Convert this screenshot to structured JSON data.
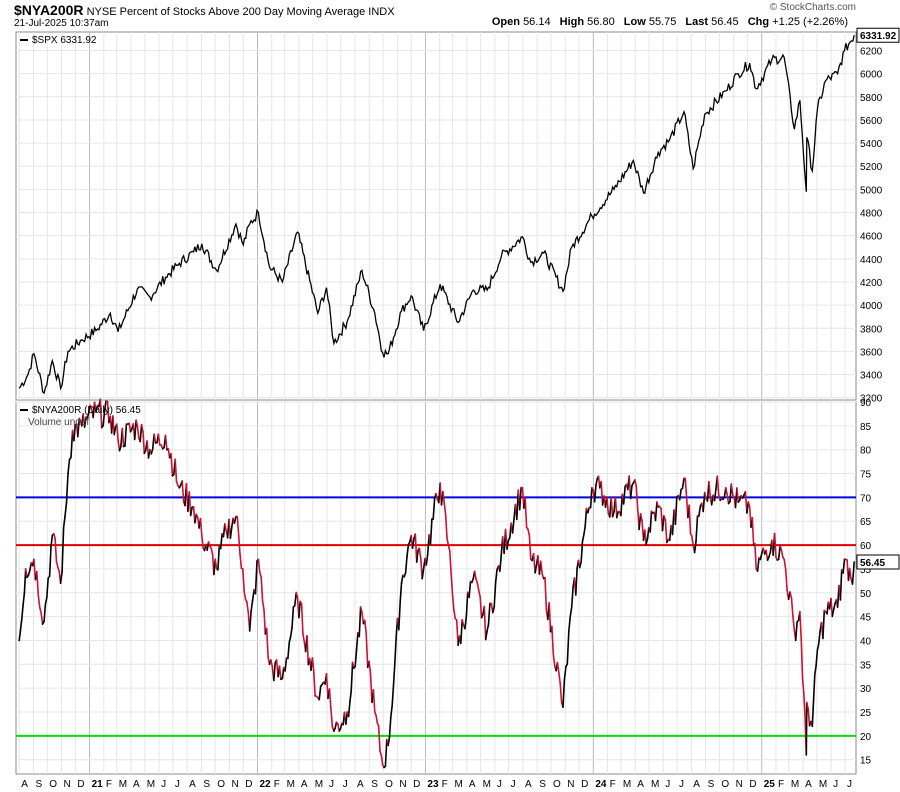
{
  "header": {
    "symbol": "$NYA200R",
    "title": "NYSE Percent of Stocks Above 200 Day Moving Average",
    "exchange": "INDX",
    "timestamp": "21-Jul-2025 10:37am",
    "watermark": "© StockCharts.com",
    "quote": {
      "open_label": "Open",
      "open": "56.14",
      "high_label": "High",
      "high": "56.80",
      "low_label": "Low",
      "low": "55.75",
      "last_label": "Last",
      "last": "56.45",
      "chg_label": "Chg",
      "chg": "+1.25 (+2.26%)"
    }
  },
  "colors": {
    "spx_line": "#000000",
    "nya_rising": "#000000",
    "nya_falling": "#cc1133",
    "line_70": "#0000dd",
    "line_60": "#dd0000",
    "line_20": "#00dd00",
    "grid": "#e6e6e6"
  },
  "chart_data": [
    {
      "type": "line",
      "panel": "upper",
      "legend": "$SPX 6331.92",
      "series": [
        {
          "name": "$SPX",
          "last_label": "6331.92",
          "points": [
            [
              "2020-08-01",
              3280
            ],
            [
              "2020-08-20",
              3400
            ],
            [
              "2020-09-02",
              3580
            ],
            [
              "2020-09-24",
              3240
            ],
            [
              "2020-10-12",
              3520
            ],
            [
              "2020-10-30",
              3280
            ],
            [
              "2020-11-15",
              3600
            ],
            [
              "2020-12-15",
              3700
            ],
            [
              "2021-01-15",
              3780
            ],
            [
              "2021-02-15",
              3930
            ],
            [
              "2021-03-04",
              3770
            ],
            [
              "2021-04-15",
              4140
            ],
            [
              "2021-05-12",
              4070
            ],
            [
              "2021-06-15",
              4240
            ],
            [
              "2021-07-15",
              4360
            ],
            [
              "2021-08-15",
              4460
            ],
            [
              "2021-09-02",
              4530
            ],
            [
              "2021-10-04",
              4300
            ],
            [
              "2021-11-15",
              4700
            ],
            [
              "2021-12-01",
              4520
            ],
            [
              "2021-12-15",
              4700
            ],
            [
              "2022-01-03",
              4800
            ],
            [
              "2022-01-27",
              4330
            ],
            [
              "2022-02-24",
              4200
            ],
            [
              "2022-03-29",
              4630
            ],
            [
              "2022-05-12",
              3930
            ],
            [
              "2022-05-31",
              4150
            ],
            [
              "2022-06-16",
              3670
            ],
            [
              "2022-07-15",
              3860
            ],
            [
              "2022-08-16",
              4300
            ],
            [
              "2022-09-13",
              3930
            ],
            [
              "2022-09-30",
              3590
            ],
            [
              "2022-10-12",
              3580
            ],
            [
              "2022-11-10",
              3950
            ],
            [
              "2022-12-01",
              4080
            ],
            [
              "2022-12-28",
              3780
            ],
            [
              "2023-02-02",
              4180
            ],
            [
              "2023-03-13",
              3850
            ],
            [
              "2023-04-15",
              4130
            ],
            [
              "2023-05-15",
              4130
            ],
            [
              "2023-06-15",
              4420
            ],
            [
              "2023-07-31",
              4590
            ],
            [
              "2023-08-18",
              4370
            ],
            [
              "2023-09-15",
              4450
            ],
            [
              "2023-10-27",
              4120
            ],
            [
              "2023-11-15",
              4500
            ],
            [
              "2023-12-29",
              4770
            ],
            [
              "2024-02-15",
              5000
            ],
            [
              "2024-03-28",
              5250
            ],
            [
              "2024-04-19",
              4970
            ],
            [
              "2024-05-21",
              5320
            ],
            [
              "2024-06-15",
              5430
            ],
            [
              "2024-07-16",
              5670
            ],
            [
              "2024-08-05",
              5180
            ],
            [
              "2024-08-30",
              5650
            ],
            [
              "2024-10-15",
              5850
            ],
            [
              "2024-11-11",
              6000
            ],
            [
              "2024-12-06",
              6090
            ],
            [
              "2024-12-20",
              5870
            ],
            [
              "2025-01-23",
              6120
            ],
            [
              "2025-02-19",
              6140
            ],
            [
              "2025-03-13",
              5520
            ],
            [
              "2025-03-25",
              5770
            ],
            [
              "2025-04-08",
              4980
            ],
            [
              "2025-04-09",
              5450
            ],
            [
              "2025-04-21",
              5160
            ],
            [
              "2025-05-02",
              5690
            ],
            [
              "2025-05-20",
              5940
            ],
            [
              "2025-06-15",
              6000
            ],
            [
              "2025-06-30",
              6200
            ],
            [
              "2025-07-21",
              6331.92
            ]
          ]
        }
      ],
      "y_ticks": [
        3200,
        3400,
        3600,
        3800,
        4000,
        4200,
        4400,
        4600,
        4800,
        5000,
        5200,
        5400,
        5600,
        5800,
        6000,
        6200
      ],
      "ylim": [
        3180,
        6360
      ]
    },
    {
      "type": "line",
      "panel": "lower",
      "legend": "$NYA200R (Daily) 56.45",
      "sublegend": "Volume undef",
      "series": [
        {
          "name": "$NYA200R",
          "last_label": "56.45",
          "points": [
            [
              "2020-08-01",
              40
            ],
            [
              "2020-08-15",
              55
            ],
            [
              "2020-09-02",
              57
            ],
            [
              "2020-09-24",
              44
            ],
            [
              "2020-10-12",
              62
            ],
            [
              "2020-10-30",
              52
            ],
            [
              "2020-11-15",
              75
            ],
            [
              "2020-11-25",
              84
            ],
            [
              "2020-12-15",
              85
            ],
            [
              "2021-01-15",
              88
            ],
            [
              "2021-02-15",
              87
            ],
            [
              "2021-03-04",
              82
            ],
            [
              "2021-04-15",
              85
            ],
            [
              "2021-05-12",
              80
            ],
            [
              "2021-06-15",
              83
            ],
            [
              "2021-07-15",
              72
            ],
            [
              "2021-08-15",
              68
            ],
            [
              "2021-09-02",
              62
            ],
            [
              "2021-10-04",
              55
            ],
            [
              "2021-10-25",
              63
            ],
            [
              "2021-11-15",
              66
            ],
            [
              "2021-11-30",
              55
            ],
            [
              "2021-12-15",
              42
            ],
            [
              "2022-01-03",
              57
            ],
            [
              "2022-01-27",
              35
            ],
            [
              "2022-02-24",
              32
            ],
            [
              "2022-03-29",
              49
            ],
            [
              "2022-05-12",
              28
            ],
            [
              "2022-05-31",
              33
            ],
            [
              "2022-06-16",
              21
            ],
            [
              "2022-07-15",
              25
            ],
            [
              "2022-08-16",
              46
            ],
            [
              "2022-09-13",
              25
            ],
            [
              "2022-09-30",
              14
            ],
            [
              "2022-10-12",
              18
            ],
            [
              "2022-11-10",
              52
            ],
            [
              "2022-12-01",
              62
            ],
            [
              "2022-12-28",
              55
            ],
            [
              "2023-02-02",
              73
            ],
            [
              "2023-02-20",
              60
            ],
            [
              "2023-03-13",
              39
            ],
            [
              "2023-04-15",
              53
            ],
            [
              "2023-05-15",
              42
            ],
            [
              "2023-06-15",
              58
            ],
            [
              "2023-07-31",
              72
            ],
            [
              "2023-08-18",
              57
            ],
            [
              "2023-09-15",
              53
            ],
            [
              "2023-10-27",
              26
            ],
            [
              "2023-11-15",
              47
            ],
            [
              "2023-12-29",
              72
            ],
            [
              "2024-01-15",
              72
            ],
            [
              "2024-02-15",
              67
            ],
            [
              "2024-03-28",
              73
            ],
            [
              "2024-04-19",
              61
            ],
            [
              "2024-05-21",
              68
            ],
            [
              "2024-06-15",
              61
            ],
            [
              "2024-07-16",
              74
            ],
            [
              "2024-08-05",
              60
            ],
            [
              "2024-08-30",
              71
            ],
            [
              "2024-10-15",
              72
            ],
            [
              "2024-11-11",
              69
            ],
            [
              "2024-12-06",
              68
            ],
            [
              "2024-12-20",
              55
            ],
            [
              "2025-01-23",
              61
            ],
            [
              "2025-02-19",
              57
            ],
            [
              "2025-03-13",
              42
            ],
            [
              "2025-03-25",
              46
            ],
            [
              "2025-04-08",
              16
            ],
            [
              "2025-04-09",
              27
            ],
            [
              "2025-04-21",
              22
            ],
            [
              "2025-05-02",
              38
            ],
            [
              "2025-05-20",
              46
            ],
            [
              "2025-06-15",
              47
            ],
            [
              "2025-06-30",
              57
            ],
            [
              "2025-07-14",
              53
            ],
            [
              "2025-07-21",
              56.45
            ]
          ]
        }
      ],
      "reference_lines": [
        {
          "value": 70,
          "color": "#0000dd"
        },
        {
          "value": 60,
          "color": "#dd0000"
        },
        {
          "value": 20,
          "color": "#00dd00"
        }
      ],
      "y_ticks": [
        15,
        20,
        25,
        30,
        35,
        40,
        45,
        50,
        55,
        60,
        65,
        70,
        75,
        80,
        85,
        90
      ],
      "ylim": [
        12,
        90
      ]
    }
  ],
  "x_axis": {
    "start": "2020-07-25",
    "end": "2025-07-25",
    "labels": [
      {
        "text": "A",
        "date": "2020-08-01"
      },
      {
        "text": "S",
        "date": "2020-09-01"
      },
      {
        "text": "O",
        "date": "2020-10-01"
      },
      {
        "text": "N",
        "date": "2020-11-01"
      },
      {
        "text": "D",
        "date": "2020-12-01"
      },
      {
        "text": "21",
        "date": "2021-01-01",
        "bold": true
      },
      {
        "text": "F",
        "date": "2021-02-01"
      },
      {
        "text": "M",
        "date": "2021-03-01"
      },
      {
        "text": "A",
        "date": "2021-04-01"
      },
      {
        "text": "M",
        "date": "2021-05-01"
      },
      {
        "text": "J",
        "date": "2021-06-01"
      },
      {
        "text": "J",
        "date": "2021-07-01"
      },
      {
        "text": "A",
        "date": "2021-08-01"
      },
      {
        "text": "S",
        "date": "2021-09-01"
      },
      {
        "text": "O",
        "date": "2021-10-01"
      },
      {
        "text": "N",
        "date": "2021-11-01"
      },
      {
        "text": "D",
        "date": "2021-12-01"
      },
      {
        "text": "22",
        "date": "2022-01-01",
        "bold": true
      },
      {
        "text": "F",
        "date": "2022-02-01"
      },
      {
        "text": "M",
        "date": "2022-03-01"
      },
      {
        "text": "A",
        "date": "2022-04-01"
      },
      {
        "text": "M",
        "date": "2022-05-01"
      },
      {
        "text": "J",
        "date": "2022-06-01"
      },
      {
        "text": "J",
        "date": "2022-07-01"
      },
      {
        "text": "A",
        "date": "2022-08-01"
      },
      {
        "text": "S",
        "date": "2022-09-01"
      },
      {
        "text": "O",
        "date": "2022-10-01"
      },
      {
        "text": "N",
        "date": "2022-11-01"
      },
      {
        "text": "D",
        "date": "2022-12-01"
      },
      {
        "text": "23",
        "date": "2023-01-01",
        "bold": true
      },
      {
        "text": "F",
        "date": "2023-02-01"
      },
      {
        "text": "M",
        "date": "2023-03-01"
      },
      {
        "text": "A",
        "date": "2023-04-01"
      },
      {
        "text": "M",
        "date": "2023-05-01"
      },
      {
        "text": "J",
        "date": "2023-06-01"
      },
      {
        "text": "J",
        "date": "2023-07-01"
      },
      {
        "text": "A",
        "date": "2023-08-01"
      },
      {
        "text": "S",
        "date": "2023-09-01"
      },
      {
        "text": "O",
        "date": "2023-10-01"
      },
      {
        "text": "N",
        "date": "2023-11-01"
      },
      {
        "text": "D",
        "date": "2023-12-01"
      },
      {
        "text": "24",
        "date": "2024-01-01",
        "bold": true
      },
      {
        "text": "F",
        "date": "2024-02-01"
      },
      {
        "text": "M",
        "date": "2024-03-01"
      },
      {
        "text": "A",
        "date": "2024-04-01"
      },
      {
        "text": "M",
        "date": "2024-05-01"
      },
      {
        "text": "J",
        "date": "2024-06-01"
      },
      {
        "text": "J",
        "date": "2024-07-01"
      },
      {
        "text": "A",
        "date": "2024-08-01"
      },
      {
        "text": "S",
        "date": "2024-09-01"
      },
      {
        "text": "O",
        "date": "2024-10-01"
      },
      {
        "text": "N",
        "date": "2024-11-01"
      },
      {
        "text": "D",
        "date": "2024-12-01"
      },
      {
        "text": "25",
        "date": "2025-01-01",
        "bold": true
      },
      {
        "text": "F",
        "date": "2025-02-01"
      },
      {
        "text": "M",
        "date": "2025-03-01"
      },
      {
        "text": "A",
        "date": "2025-04-01"
      },
      {
        "text": "M",
        "date": "2025-05-01"
      },
      {
        "text": "J",
        "date": "2025-06-01"
      },
      {
        "text": "J",
        "date": "2025-07-01"
      }
    ]
  }
}
